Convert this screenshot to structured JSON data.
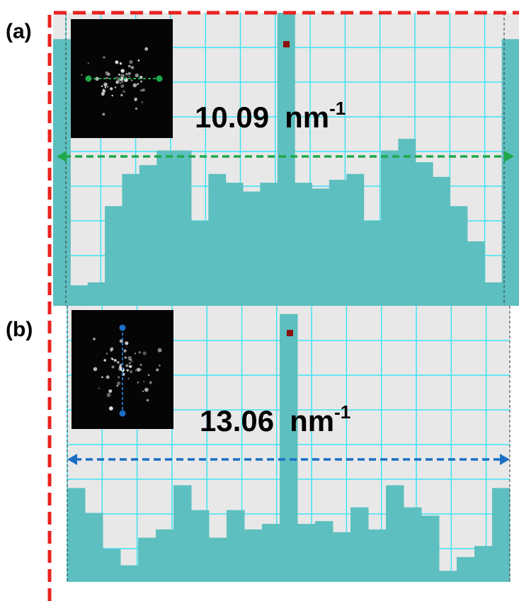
{
  "panels": [
    {
      "label": "(a)",
      "distance": "10.09",
      "unit": "nm",
      "unit_exponent": "-1",
      "profile": [
        91,
        7,
        8,
        34,
        45,
        48,
        53,
        53,
        29,
        45,
        42,
        39,
        42,
        100,
        42,
        40,
        43,
        45,
        29,
        53,
        57,
        49,
        44,
        34,
        22,
        8,
        91
      ]
    },
    {
      "label": "(b)",
      "distance": "13.06",
      "unit": "nm",
      "unit_exponent": "-1",
      "profile": [
        34,
        25,
        12,
        6,
        16,
        19,
        35,
        26,
        16,
        26,
        19,
        21,
        97,
        21,
        22,
        18,
        27,
        19,
        35,
        27,
        24,
        4,
        9,
        13,
        34
      ]
    }
  ]
}
